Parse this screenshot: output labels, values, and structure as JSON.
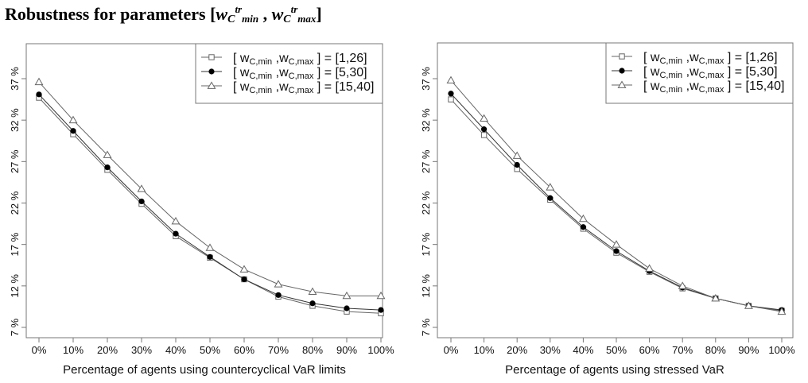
{
  "title": {
    "prefix": "Robustness for parameters [",
    "w1": "w",
    "c1": "C",
    "sup1": "tr",
    "sub1": "min",
    "sep": " , ",
    "w2": "w",
    "c2": "C",
    "sup2": "tr",
    "sub2": "max",
    "suffix": "]"
  },
  "legend_label_parts": {
    "open": "[ w",
    "sub_min": "C,min",
    "comma": " ,w",
    "sub_max": "C,max",
    "close": " ] = "
  },
  "chart_data": [
    {
      "type": "line",
      "title": "",
      "xlabel": "Percentage of agents using countercyclical VaR limits",
      "ylabel": "",
      "x": [
        0,
        10,
        20,
        30,
        40,
        50,
        60,
        70,
        80,
        90,
        100
      ],
      "x_tick_labels": [
        "0%",
        "10%",
        "20%",
        "30%",
        "40%",
        "50%",
        "60%",
        "70%",
        "80%",
        "90%",
        "100%"
      ],
      "y_ticks": [
        7,
        12,
        17,
        22,
        27,
        32,
        37
      ],
      "y_tick_labels": [
        "7 %",
        "12 %",
        "17 %",
        "22 %",
        "27 %",
        "32 %",
        "37 %"
      ],
      "ylim": [
        6.2,
        41.3
      ],
      "grid": false,
      "legend_position": "top-right",
      "series": [
        {
          "name": "[1,26]",
          "marker": "square-open",
          "values": [
            34.7,
            30.3,
            26.0,
            21.9,
            18.0,
            15.4,
            12.8,
            10.7,
            9.6,
            8.9,
            8.7
          ]
        },
        {
          "name": "[5,30]",
          "marker": "circle-filled",
          "values": [
            35.1,
            30.7,
            26.3,
            22.2,
            18.3,
            15.5,
            12.8,
            10.9,
            9.9,
            9.3,
            9.1
          ]
        },
        {
          "name": "[15,40]",
          "marker": "triangle-open",
          "values": [
            36.6,
            32.0,
            27.8,
            23.7,
            19.8,
            16.6,
            14.0,
            12.2,
            11.3,
            10.8,
            10.8
          ]
        }
      ]
    },
    {
      "type": "line",
      "title": "",
      "xlabel": "Percentage of agents using stressed VaR",
      "ylabel": "",
      "x": [
        0,
        10,
        20,
        30,
        40,
        50,
        60,
        70,
        80,
        90,
        100
      ],
      "x_tick_labels": [
        "0%",
        "10%",
        "20%",
        "30%",
        "40%",
        "50%",
        "60%",
        "70%",
        "80%",
        "90%",
        "100%"
      ],
      "y_ticks": [
        7,
        12,
        17,
        22,
        27,
        32,
        37
      ],
      "y_tick_labels": [
        "7 %",
        "12 %",
        "17 %",
        "22 %",
        "27 %",
        "32 %",
        "37 %"
      ],
      "ylim": [
        6.2,
        41.3
      ],
      "grid": false,
      "legend_position": "top-right",
      "series": [
        {
          "name": "[1,26]",
          "marker": "square-open",
          "values": [
            34.5,
            30.2,
            26.1,
            22.4,
            18.9,
            16.0,
            13.7,
            11.7,
            10.5,
            9.6,
            9.0
          ]
        },
        {
          "name": "[5,30]",
          "marker": "circle-filled",
          "values": [
            35.2,
            30.9,
            26.6,
            22.6,
            19.1,
            16.2,
            13.8,
            11.8,
            10.5,
            9.6,
            9.1
          ]
        },
        {
          "name": "[15,40]",
          "marker": "triangle-open",
          "values": [
            36.8,
            32.2,
            27.7,
            23.9,
            20.1,
            17.0,
            14.1,
            12.0,
            10.5,
            9.6,
            8.9
          ]
        }
      ]
    }
  ],
  "colors": {
    "line": "#666666",
    "frame": "#777777",
    "marker_fill": "#000000",
    "text": "#111111"
  }
}
